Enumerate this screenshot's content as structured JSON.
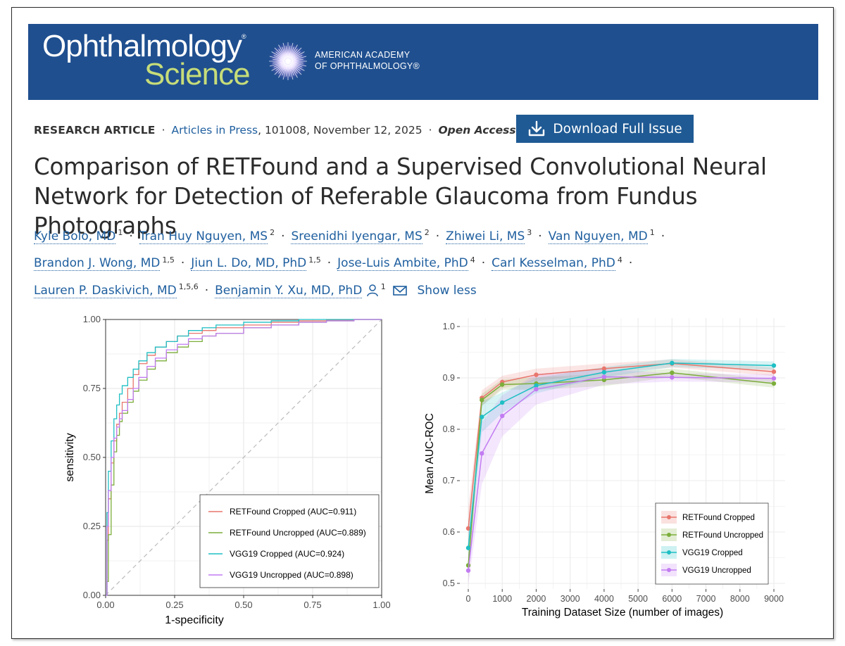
{
  "banner": {
    "journal_line1": "Ophthalmology",
    "journal_line2": "Science",
    "registered": "®",
    "org_line1": "AMERICAN ACADEMY",
    "org_line2": "OF OPHTHALMOLOGY®"
  },
  "meta": {
    "article_type": "RESEARCH ARTICLE",
    "articles_in_press": "Articles in Press",
    "details": ", 101008, November 12, 2025",
    "access": "Open Access",
    "separator": "·"
  },
  "download_button": {
    "label": "Download Full Issue"
  },
  "article": {
    "title": "Comparison of RETFound and a Supervised Convolutional Neural Network for Detection of Referable Glaucoma from Fundus Photographs"
  },
  "authors": {
    "list": [
      {
        "name": "Kyle Bolo, MD",
        "aff": "1"
      },
      {
        "name": "Tran Huy Nguyen, MS",
        "aff": "2"
      },
      {
        "name": "Sreenidhi Iyengar, MS",
        "aff": "2"
      },
      {
        "name": "Zhiwei Li, MS",
        "aff": "3"
      },
      {
        "name": "Van Nguyen, MD",
        "aff": "1"
      },
      {
        "name": "Brandon J. Wong, MD",
        "aff": "1,5"
      },
      {
        "name": "Jiun L. Do, MD, PhD",
        "aff": "1,5"
      },
      {
        "name": "Jose-Luis Ambite, PhD",
        "aff": "4"
      },
      {
        "name": "Carl Kesselman, PhD",
        "aff": "4"
      },
      {
        "name": "Lauren P. Daskivich, MD",
        "aff": "1,5,6"
      },
      {
        "name": "Benjamin Y. Xu, MD, PhD",
        "aff": "1"
      }
    ],
    "show_less": "Show less",
    "icons": [
      "person-icon",
      "mail-icon"
    ]
  },
  "chart_data": [
    {
      "type": "line",
      "title": "",
      "xlabel": "1-specificity",
      "ylabel": "sensitivity",
      "xlim": [
        0,
        1
      ],
      "ylim": [
        0,
        1
      ],
      "xticks": [
        "0.00",
        "0.25",
        "0.50",
        "0.75",
        "1.00"
      ],
      "yticks": [
        "0.00",
        "0.25",
        "0.50",
        "0.75",
        "1.00"
      ],
      "grid": true,
      "legend_position": "bottom-right",
      "diagonal_reference": true,
      "series": [
        {
          "name": "RETFound Cropped (AUC=0.911)",
          "color": "#e8766d",
          "x": [
            0,
            0.005,
            0.01,
            0.02,
            0.03,
            0.04,
            0.05,
            0.06,
            0.08,
            0.1,
            0.12,
            0.15,
            0.18,
            0.22,
            0.26,
            0.3,
            0.35,
            0.4,
            0.5,
            0.6,
            0.7,
            0.8,
            0.9,
            1.0
          ],
          "y": [
            0,
            0.2,
            0.35,
            0.48,
            0.56,
            0.62,
            0.66,
            0.7,
            0.75,
            0.8,
            0.84,
            0.87,
            0.9,
            0.92,
            0.94,
            0.95,
            0.96,
            0.97,
            0.98,
            0.99,
            0.995,
            0.998,
            1.0,
            1.0
          ]
        },
        {
          "name": "RETFound Uncropped (AUC=0.889)",
          "color": "#7cae3b",
          "x": [
            0,
            0.005,
            0.01,
            0.02,
            0.03,
            0.04,
            0.05,
            0.06,
            0.08,
            0.1,
            0.12,
            0.15,
            0.18,
            0.22,
            0.26,
            0.3,
            0.35,
            0.4,
            0.5,
            0.6,
            0.7,
            0.8,
            0.9,
            1.0
          ],
          "y": [
            0,
            0.05,
            0.22,
            0.4,
            0.52,
            0.58,
            0.63,
            0.66,
            0.7,
            0.74,
            0.78,
            0.82,
            0.85,
            0.88,
            0.9,
            0.92,
            0.94,
            0.95,
            0.97,
            0.98,
            0.99,
            0.995,
            1.0,
            1.0
          ]
        },
        {
          "name": "VGG19 Cropped (AUC=0.924)",
          "color": "#1fbfc4",
          "x": [
            0,
            0.005,
            0.01,
            0.02,
            0.03,
            0.04,
            0.05,
            0.06,
            0.08,
            0.1,
            0.12,
            0.15,
            0.18,
            0.22,
            0.26,
            0.3,
            0.35,
            0.4,
            0.5,
            0.6,
            0.7,
            0.8,
            0.9,
            1.0
          ],
          "y": [
            0,
            0.3,
            0.45,
            0.56,
            0.64,
            0.69,
            0.73,
            0.76,
            0.79,
            0.82,
            0.85,
            0.88,
            0.9,
            0.92,
            0.94,
            0.96,
            0.97,
            0.98,
            0.99,
            0.995,
            1.0,
            1.0,
            1.0,
            1.0
          ]
        },
        {
          "name": "VGG19 Uncropped (AUC=0.898)",
          "color": "#c27cf2",
          "x": [
            0,
            0.005,
            0.01,
            0.02,
            0.03,
            0.04,
            0.05,
            0.06,
            0.08,
            0.1,
            0.12,
            0.15,
            0.18,
            0.22,
            0.26,
            0.3,
            0.35,
            0.4,
            0.5,
            0.6,
            0.7,
            0.8,
            0.9,
            1.0
          ],
          "y": [
            0,
            0.25,
            0.38,
            0.5,
            0.57,
            0.61,
            0.64,
            0.67,
            0.71,
            0.75,
            0.79,
            0.83,
            0.86,
            0.89,
            0.91,
            0.93,
            0.94,
            0.95,
            0.97,
            0.98,
            0.99,
            0.995,
            1.0,
            1.0
          ]
        }
      ]
    },
    {
      "type": "line",
      "title": "",
      "xlabel": "Training Dataset Size (number of images)",
      "ylabel": "Mean AUC-ROC",
      "xlim": [
        0,
        9000
      ],
      "ylim": [
        0.5,
        1.0
      ],
      "xticks": [
        "0",
        "1000",
        "2000",
        "3000",
        "4000",
        "5000",
        "6000",
        "7000",
        "8000",
        "9000"
      ],
      "yticks": [
        "0.5",
        "0.6",
        "0.7",
        "0.8",
        "0.9",
        "1.0"
      ],
      "grid": true,
      "legend_position": "bottom-right",
      "confidence_bands": true,
      "x": [
        0,
        400,
        1000,
        2000,
        4000,
        6000,
        9000
      ],
      "series": [
        {
          "name": "RETFound Cropped",
          "color": "#e8766d",
          "values": [
            0.607,
            0.861,
            0.892,
            0.906,
            0.918,
            0.928,
            0.912
          ],
          "band": [
            0.04,
            0.015,
            0.012,
            0.012,
            0.01,
            0.008,
            0.008
          ]
        },
        {
          "name": "RETFound Uncropped",
          "color": "#7cae3b",
          "values": [
            0.535,
            0.857,
            0.887,
            0.889,
            0.896,
            0.91,
            0.889
          ],
          "band": [
            0.03,
            0.012,
            0.01,
            0.012,
            0.012,
            0.008,
            0.008
          ]
        },
        {
          "name": "VGG19 Cropped",
          "color": "#1fbfc4",
          "values": [
            0.569,
            0.824,
            0.852,
            0.885,
            0.911,
            0.929,
            0.924
          ],
          "band": [
            0.04,
            0.03,
            0.02,
            0.015,
            0.01,
            0.008,
            0.008
          ]
        },
        {
          "name": "VGG19 Uncropped",
          "color": "#c27cf2",
          "values": [
            0.525,
            0.753,
            0.826,
            0.878,
            0.902,
            0.901,
            0.899
          ],
          "band": [
            0.03,
            0.06,
            0.04,
            0.03,
            0.015,
            0.008,
            0.008
          ]
        }
      ]
    }
  ]
}
